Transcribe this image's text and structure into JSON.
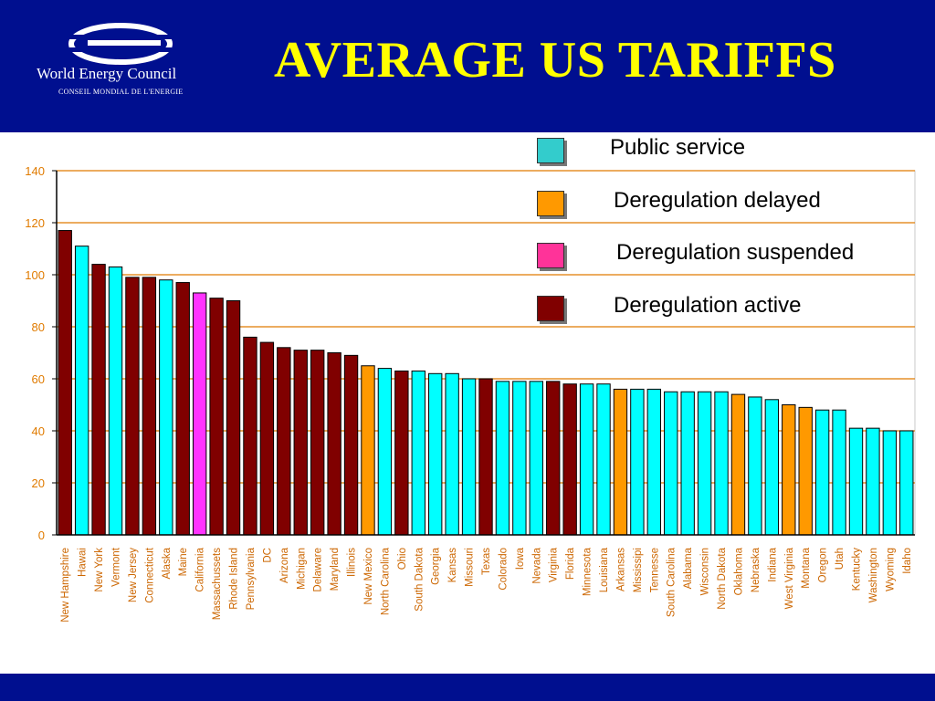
{
  "header": {
    "title": "AVERAGE US TARIFFS",
    "logo_name": "World Energy Council",
    "logo_subtitle": "CONSEIL MONDIAL DE L'ENERGIE"
  },
  "colors": {
    "header_bg": "#000f8f",
    "title": "#ffff00",
    "public_service": "#00ffff",
    "deregulation_delayed": "#ff9900",
    "deregulation_suspended": "#ff33ff",
    "deregulation_active": "#800000",
    "gridline": "#e07b00",
    "tick_label": "#e07b00",
    "axis_label": "#cc6600"
  },
  "legend": [
    {
      "key": "public_service",
      "label": "Public service",
      "color": "#33cccc"
    },
    {
      "key": "deregulation_delayed",
      "label": "Deregulation delayed",
      "color": "#ff9900"
    },
    {
      "key": "deregulation_suspended",
      "label": "Deregulation suspended",
      "color": "#ff3399"
    },
    {
      "key": "deregulation_active",
      "label": "Deregulation active",
      "color": "#800000"
    }
  ],
  "chart_data": {
    "type": "bar",
    "title": "AVERAGE US TARIFFS",
    "xlabel": "",
    "ylabel": "",
    "ylim": [
      0,
      140
    ],
    "yticks": [
      0,
      20,
      40,
      60,
      80,
      100,
      120,
      140
    ],
    "grid": true,
    "legend_position": "top-right",
    "categories": [
      "New Hampshire",
      "Hawai",
      "New York",
      "Vermont",
      "New Jersey",
      "Connecticut",
      "Alaska",
      "Maine",
      "California",
      "Massachussets",
      "Rhode Island",
      "Pennsylvania",
      "DC",
      "Arizona",
      "Michigan",
      "Delaware",
      "Maryland",
      "Illinois",
      "New Mexico",
      "North Carolina",
      "Ohio",
      "South Dakota",
      "Georgia",
      "Kansas",
      "Missouri",
      "Texas",
      "Colorado",
      "Iowa",
      "Nevada",
      "Virginia",
      "Florida",
      "Minnesota",
      "Louisiana",
      "Arkansas",
      "Mississipi",
      "Tennesse",
      "South Carolina",
      "Alabama",
      "Wisconsin",
      "North Dakota",
      "Oklahoma",
      "Nebraska",
      "Indiana",
      "West Virginia",
      "Montana",
      "Oregon",
      "Utah",
      "Kentucky",
      "Washington",
      "Wyoming",
      "Idaho"
    ],
    "values": [
      117,
      111,
      104,
      103,
      99,
      99,
      98,
      97,
      93,
      91,
      90,
      76,
      74,
      72,
      71,
      71,
      70,
      69,
      65,
      64,
      63,
      63,
      62,
      62,
      60,
      60,
      59,
      59,
      59,
      59,
      58,
      58,
      58,
      56,
      56,
      56,
      55,
      55,
      55,
      55,
      54,
      53,
      52,
      50,
      49,
      48,
      48,
      41,
      41,
      40,
      40
    ],
    "status": [
      "active",
      "public",
      "active",
      "public",
      "active",
      "active",
      "public",
      "active",
      "suspended",
      "active",
      "active",
      "active",
      "active",
      "active",
      "active",
      "active",
      "active",
      "active",
      "delayed",
      "public",
      "active",
      "public",
      "public",
      "public",
      "public",
      "active",
      "public",
      "public",
      "public",
      "active",
      "active",
      "public",
      "public",
      "delayed",
      "public",
      "public",
      "public",
      "public",
      "public",
      "public",
      "delayed",
      "public",
      "public",
      "delayed",
      "delayed",
      "public",
      "public",
      "public",
      "public",
      "public",
      "public"
    ]
  }
}
